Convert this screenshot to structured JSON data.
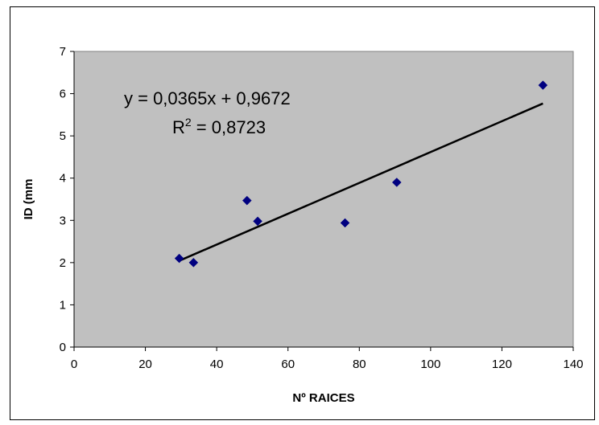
{
  "chart_data": {
    "type": "scatter",
    "title": "",
    "xlabel": "Nº RAICES",
    "ylabel": "ID (mm",
    "xlim": [
      0,
      140
    ],
    "ylim": [
      0,
      7
    ],
    "x_ticks": [
      0,
      20,
      40,
      60,
      80,
      100,
      120,
      140
    ],
    "y_ticks": [
      0,
      1,
      2,
      3,
      4,
      5,
      6,
      7
    ],
    "grid": false,
    "legend": "none",
    "plot_background": "#c0c0c0",
    "marker_color": "#000080",
    "marker_shape": "diamond",
    "trendline_color": "#000000",
    "series": [
      {
        "x": [
          29.5,
          33.5,
          48.5,
          51.5,
          76,
          90.5,
          131.5
        ],
        "y": [
          2.1,
          2.0,
          3.47,
          2.98,
          2.94,
          3.9,
          6.2
        ]
      }
    ],
    "trendline": {
      "slope": 0.0365,
      "intercept": 0.9672,
      "x_range": [
        29.5,
        131.5
      ],
      "equation_label": "y = 0,0365x + 0,9672",
      "r2_label_prefix": "R",
      "r2_label_sup": "2",
      "r2_label_value": " = 0,8723"
    }
  }
}
